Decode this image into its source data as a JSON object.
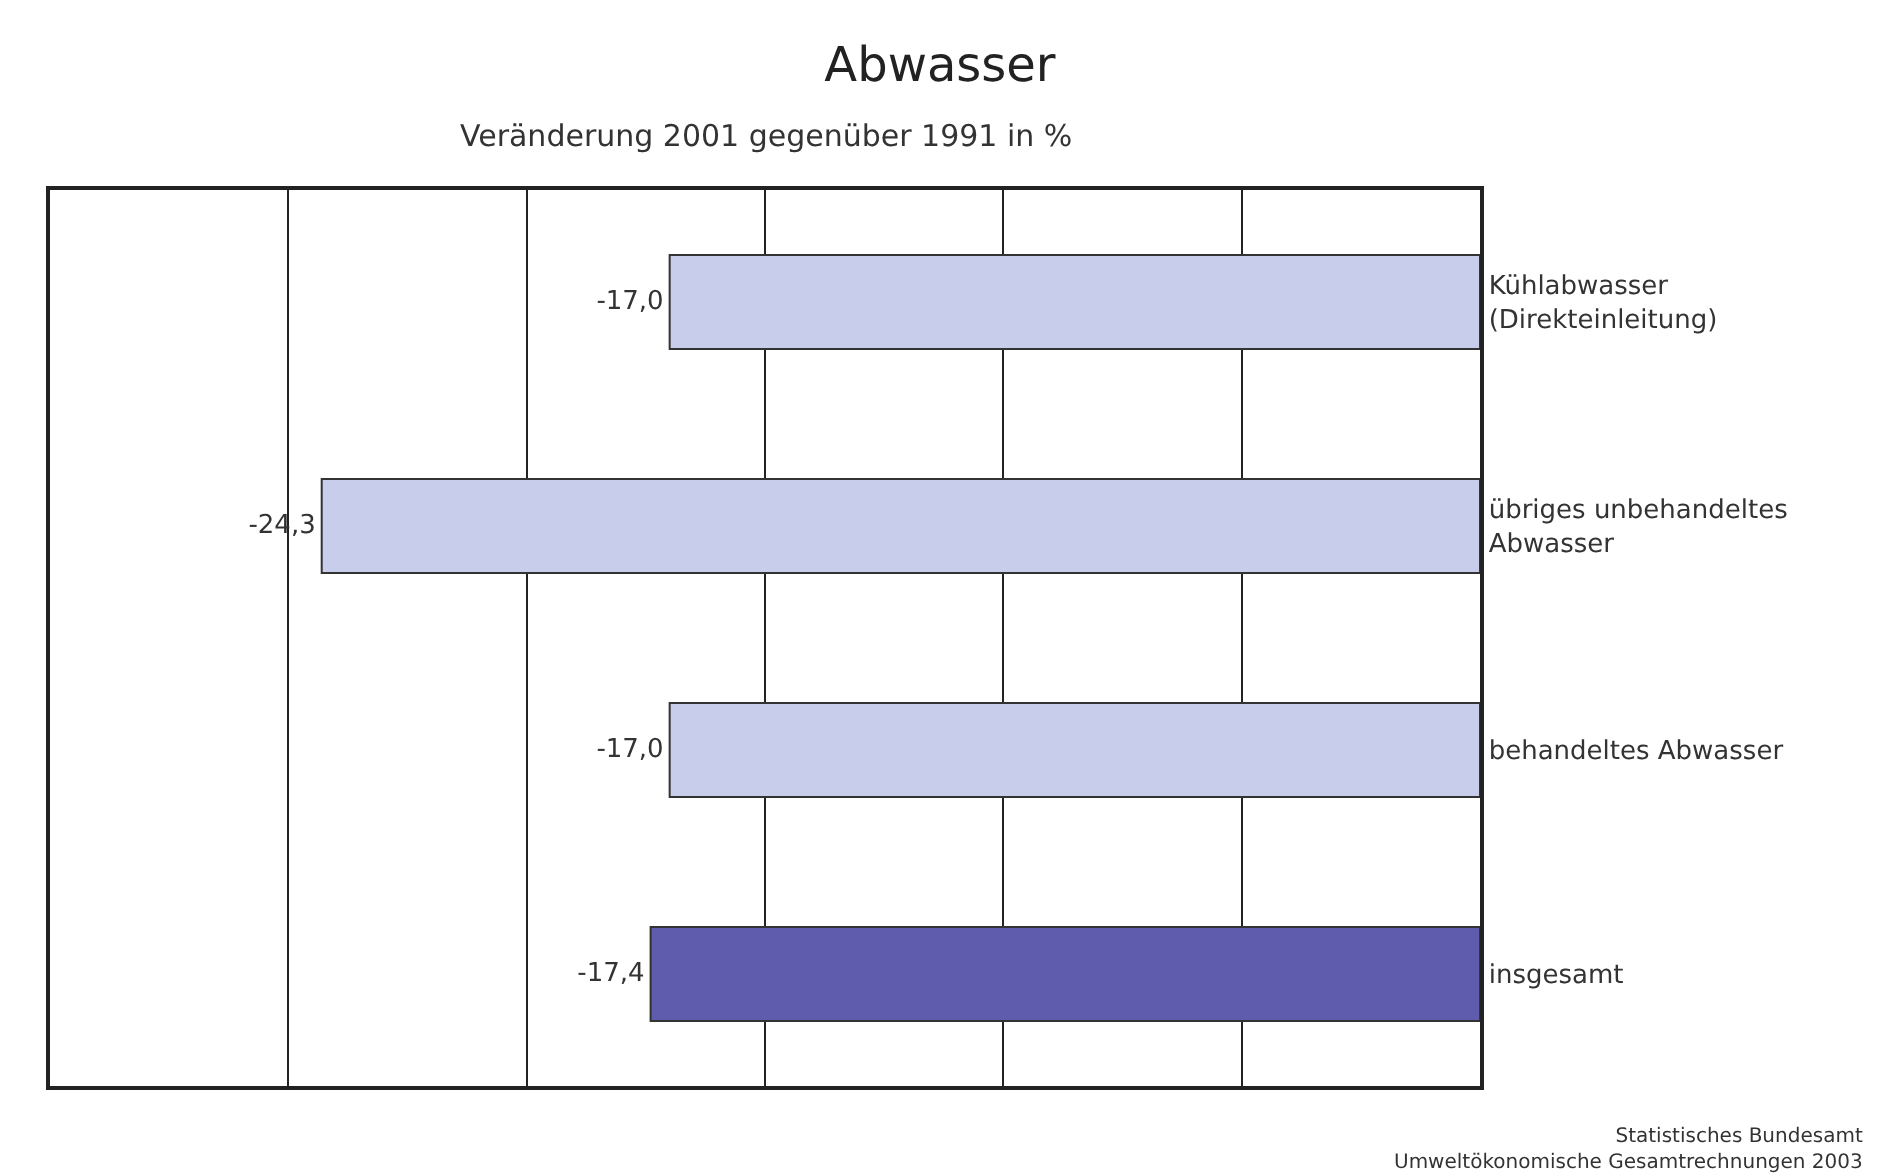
{
  "chart_data": {
    "type": "bar",
    "orientation": "horizontal",
    "title": "Abwasser",
    "subtitle": "Veränderung 2001 gegenüber 1991 in %",
    "categories": [
      "Kühlabwasser\n(Direkteinleitung)",
      "übriges unbehandeltes\nAbwasser",
      "behandeltes Abwasser",
      "insgesamt"
    ],
    "values": [
      -17.0,
      -24.3,
      -17.0,
      -17.4
    ],
    "value_labels": [
      "-17,0",
      "-24,3",
      "-17,0",
      "-17,4"
    ],
    "colors": [
      "#c8cdec",
      "#c8cdec",
      "#c8cdec",
      "#5f5cae"
    ],
    "xlim": [
      -30,
      0
    ],
    "xticks": [
      {
        "value": -30,
        "label": null
      },
      {
        "value": -25,
        "label": null
      },
      {
        "value": -20,
        "label": null
      },
      {
        "value": -15,
        "label": null
      },
      {
        "value": -10,
        "label": null
      },
      {
        "value": -5,
        "label": null
      },
      {
        "value": 0,
        "label": null
      }
    ],
    "grid": "x",
    "tick_labels": "y",
    "annotations": [
      "Statistisches Bundesamt\nUmweltökonomische Gesamtrechnungen 2003"
    ]
  }
}
